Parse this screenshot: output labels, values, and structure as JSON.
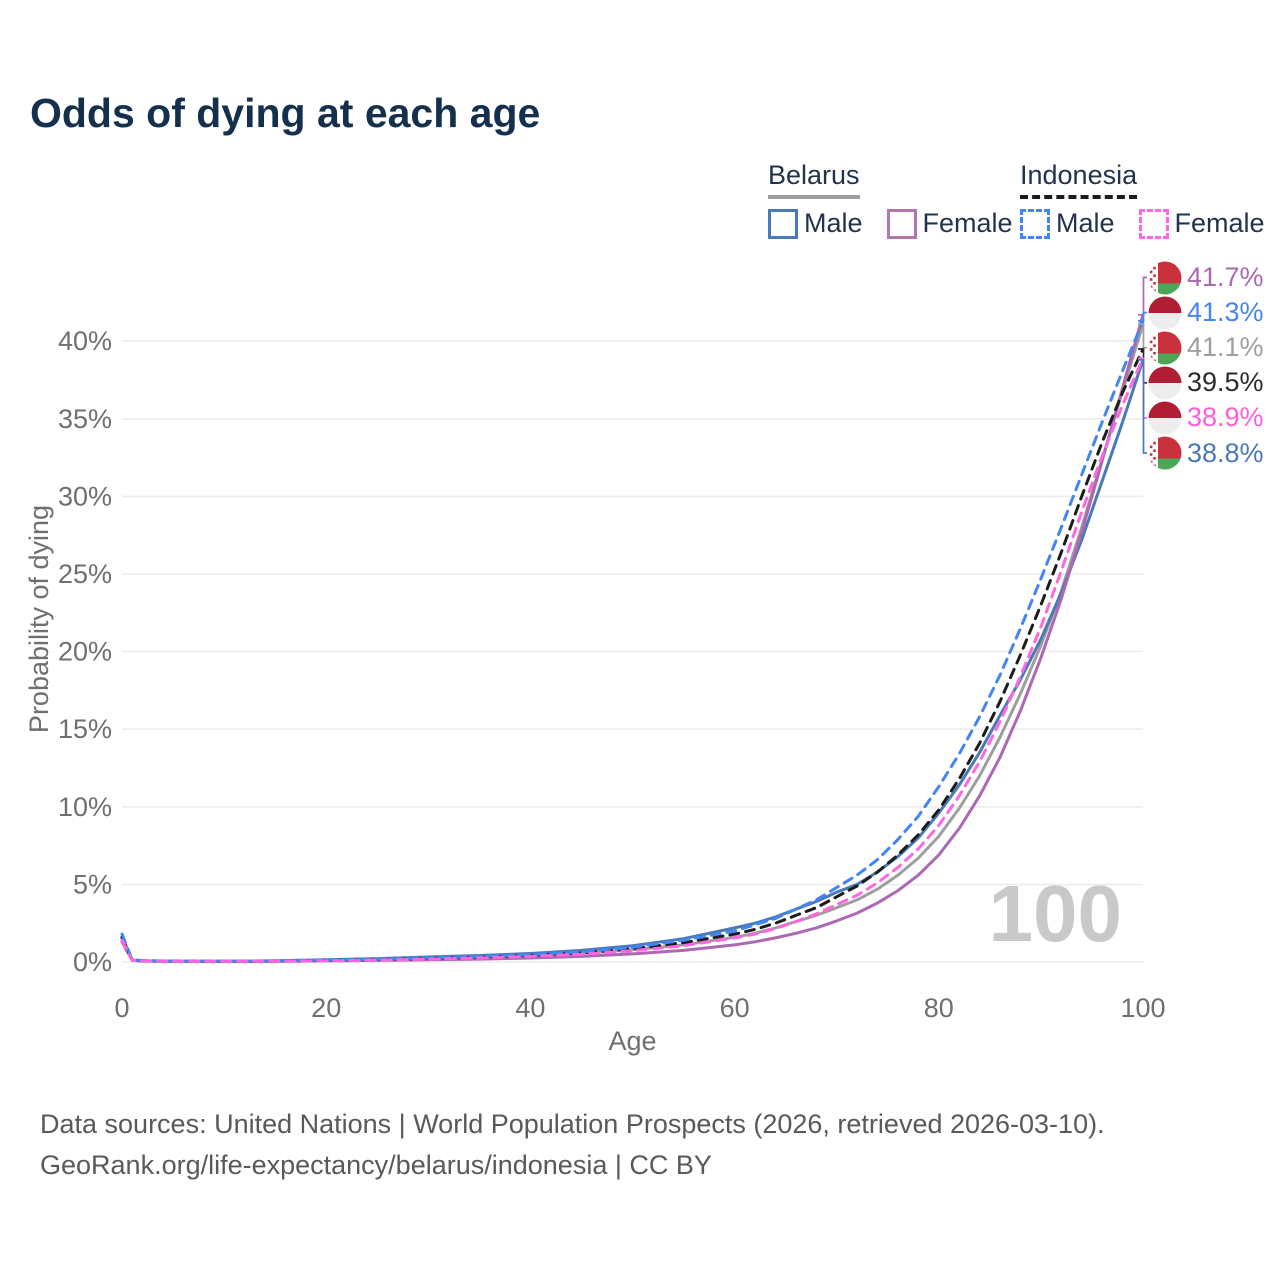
{
  "header": {
    "title": "Odds of dying at each age"
  },
  "legend": {
    "groups": [
      {
        "name": "Belarus",
        "line_color": "#9e9e9e",
        "line_style": "solid",
        "items": [
          {
            "label": "Male",
            "color": "#4a79b8",
            "style": "solid"
          },
          {
            "label": "Female",
            "color": "#b474ae",
            "style": "solid"
          }
        ]
      },
      {
        "name": "Indonesia",
        "line_color": "#1c1c1c",
        "line_style": "dashed",
        "items": [
          {
            "label": "Male",
            "color": "#4285f4",
            "style": "dashed"
          },
          {
            "label": "Female",
            "color": "#ff66e0",
            "style": "dashed"
          }
        ]
      }
    ]
  },
  "chart_data": {
    "type": "line",
    "title": "Odds of dying at each age",
    "xlabel": "Age",
    "ylabel": "Probability of dying",
    "xlim": [
      0,
      100
    ],
    "ylim_percent": [
      0,
      43
    ],
    "xticks": [
      0,
      20,
      40,
      60,
      80,
      100
    ],
    "yticks": [
      {
        "value": 0,
        "label": "0%"
      },
      {
        "value": 5,
        "label": "5%"
      },
      {
        "value": 10,
        "label": "10%"
      },
      {
        "value": 15,
        "label": "15%"
      },
      {
        "value": 20,
        "label": "20%"
      },
      {
        "value": 25,
        "label": "25%"
      },
      {
        "value": 30,
        "label": "30%"
      },
      {
        "value": 35,
        "label": "35%"
      },
      {
        "value": 40,
        "label": "40%"
      }
    ],
    "grid": true,
    "legend_position": "top-right",
    "watermark": "100",
    "x": [
      0,
      1,
      2,
      5,
      10,
      15,
      20,
      25,
      30,
      35,
      40,
      45,
      50,
      55,
      60,
      62,
      64,
      66,
      68,
      70,
      72,
      74,
      76,
      78,
      80,
      82,
      84,
      86,
      88,
      90,
      92,
      94,
      96,
      98,
      100
    ],
    "series": [
      {
        "name": "Belarus",
        "country": "belarus",
        "color": "#9e9e9e",
        "dash": false,
        "values": [
          1.5,
          0.11,
          0.07,
          0.04,
          0.04,
          0.06,
          0.11,
          0.16,
          0.23,
          0.31,
          0.42,
          0.56,
          0.78,
          1.1,
          1.6,
          1.85,
          2.2,
          2.6,
          3.0,
          3.5,
          4.0,
          4.7,
          5.6,
          6.7,
          8.1,
          9.9,
          12.0,
          14.5,
          17.3,
          20.4,
          23.9,
          28.0,
          32.4,
          36.8,
          41.1
        ]
      },
      {
        "name": "Belarus Male",
        "country": "belarus",
        "color": "#4a79b8",
        "dash": false,
        "values": [
          1.6,
          0.12,
          0.08,
          0.05,
          0.05,
          0.08,
          0.15,
          0.22,
          0.32,
          0.42,
          0.55,
          0.75,
          1.05,
          1.5,
          2.2,
          2.5,
          2.9,
          3.4,
          3.9,
          4.5,
          5.0,
          5.8,
          6.8,
          8.0,
          9.6,
          11.4,
          13.5,
          15.9,
          18.2,
          20.8,
          23.8,
          27.2,
          31.0,
          34.8,
          38.8
        ]
      },
      {
        "name": "Belarus Female",
        "country": "belarus",
        "color": "#ac68b2",
        "dash": false,
        "values": [
          1.3,
          0.1,
          0.06,
          0.03,
          0.03,
          0.04,
          0.07,
          0.1,
          0.14,
          0.19,
          0.26,
          0.36,
          0.52,
          0.75,
          1.1,
          1.3,
          1.55,
          1.85,
          2.2,
          2.65,
          3.15,
          3.8,
          4.6,
          5.6,
          6.9,
          8.6,
          10.7,
          13.2,
          16.2,
          19.6,
          23.4,
          27.7,
          32.3,
          37.0,
          41.7
        ]
      },
      {
        "name": "Indonesia",
        "country": "indonesia",
        "color": "#1c1c1c",
        "dash": true,
        "values": [
          1.6,
          0.13,
          0.08,
          0.05,
          0.04,
          0.06,
          0.1,
          0.15,
          0.22,
          0.3,
          0.42,
          0.58,
          0.85,
          1.25,
          1.8,
          2.1,
          2.5,
          3.0,
          3.5,
          4.2,
          4.9,
          5.8,
          6.9,
          8.2,
          9.8,
          11.8,
          14.1,
          16.8,
          19.8,
          23.0,
          26.4,
          30.0,
          33.5,
          36.7,
          39.5
        ]
      },
      {
        "name": "Indonesia Male",
        "country": "indonesia",
        "color": "#4285f4",
        "dash": true,
        "values": [
          1.8,
          0.14,
          0.09,
          0.06,
          0.05,
          0.07,
          0.12,
          0.18,
          0.25,
          0.35,
          0.48,
          0.65,
          0.95,
          1.4,
          2.0,
          2.4,
          2.8,
          3.4,
          4.0,
          4.8,
          5.6,
          6.6,
          7.9,
          9.4,
          11.3,
          13.4,
          15.8,
          18.5,
          21.5,
          24.7,
          28.0,
          31.4,
          34.8,
          38.1,
          41.3
        ]
      },
      {
        "name": "Indonesia Female",
        "country": "indonesia",
        "color": "#ff66e0",
        "dash": true,
        "values": [
          1.4,
          0.11,
          0.07,
          0.04,
          0.04,
          0.05,
          0.08,
          0.12,
          0.18,
          0.26,
          0.36,
          0.5,
          0.72,
          1.05,
          1.55,
          1.8,
          2.15,
          2.6,
          3.1,
          3.7,
          4.3,
          5.1,
          6.1,
          7.3,
          8.8,
          10.7,
          12.9,
          15.5,
          18.4,
          21.6,
          25.2,
          29.0,
          32.6,
          35.9,
          38.9
        ]
      }
    ],
    "end_labels": [
      {
        "series": "Belarus Female",
        "flag": "belarus",
        "text": "41.7%",
        "color": "#ac68b2"
      },
      {
        "series": "Indonesia Male",
        "flag": "indonesia",
        "text": "41.3%",
        "color": "#4285f4"
      },
      {
        "series": "Belarus",
        "flag": "belarus",
        "text": "41.1%",
        "color": "#9e9e9e"
      },
      {
        "series": "Indonesia",
        "flag": "indonesia",
        "text": "39.5%",
        "color": "#2b2b2b"
      },
      {
        "series": "Indonesia Female",
        "flag": "indonesia",
        "text": "38.9%",
        "color": "#ff5ce0"
      },
      {
        "series": "Belarus Male",
        "flag": "belarus",
        "text": "38.8%",
        "color": "#4a79b8"
      }
    ],
    "flag_colors": {
      "belarus_red": "#c9313d",
      "belarus_green": "#4ba658",
      "belarus_white": "#ffffff",
      "indonesia_red": "#b01e33",
      "indonesia_white": "#ededed"
    }
  },
  "footer": {
    "line1": "Data sources: United Nations | World Population Prospects (2026, retrieved 2026-03-10).",
    "line2": "GeoRank.org/life-expectancy/belarus/indonesia | CC BY"
  }
}
